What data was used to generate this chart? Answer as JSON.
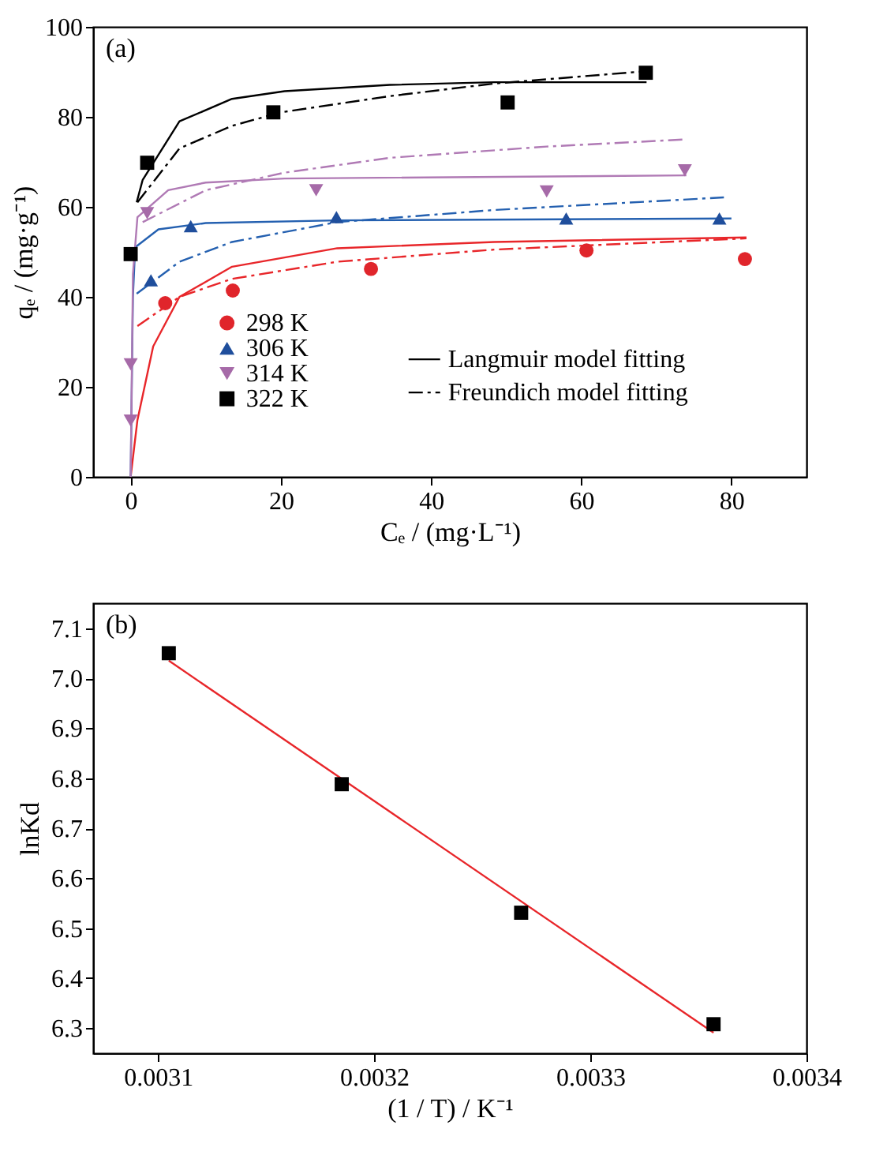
{
  "chart_data": [
    {
      "type": "scatter",
      "annotations": [
        "(a)"
      ],
      "xlabel": "Cₑ / (mg·L⁻¹)",
      "ylabel": "qₑ / (mg·g⁻¹)",
      "xlim": [
        -5,
        90
      ],
      "ylim": [
        0,
        100
      ],
      "xticks": [
        0,
        20,
        40,
        60,
        80
      ],
      "yticks": [
        0,
        20,
        40,
        60,
        80,
        100
      ],
      "grid": false,
      "legend": "bottom",
      "series": [
        {
          "type": "line",
          "color": "#e8262a",
          "line_style": "solid",
          "x": [
            0,
            0.9,
            3,
            6.5,
            13.5,
            27.5,
            48.4,
            82
          ],
          "values": [
            0,
            12.6,
            29,
            40,
            46.7,
            50.8,
            52.2,
            53.2
          ]
        },
        {
          "type": "line",
          "color": "#e8262a",
          "line_style": "dashed",
          "x": [
            0.9,
            6.5,
            13.5,
            27.5,
            48.4,
            82
          ],
          "values": [
            33.5,
            40,
            44,
            47.8,
            50.5,
            53
          ]
        },
        {
          "type": "line",
          "color": "#2460b0",
          "line_style": "solid",
          "x": [
            0,
            0.3,
            0.6,
            3.7,
            10,
            27.5,
            80
          ],
          "values": [
            0,
            40,
            51,
            55,
            56.4,
            57,
            57.4
          ]
        },
        {
          "type": "line",
          "color": "#2460b0",
          "line_style": "dashed",
          "x": [
            0.8,
            6.5,
            13.5,
            27.5,
            48.4,
            79
          ],
          "values": [
            40.7,
            47.8,
            52.2,
            56.6,
            59.3,
            62.1
          ]
        },
        {
          "type": "line",
          "color": "#b07ab5",
          "line_style": "solid",
          "x": [
            0,
            0.3,
            0.9,
            5,
            10,
            20.5,
            74
          ],
          "values": [
            0,
            45,
            57.7,
            63.7,
            65.4,
            66.3,
            67
          ]
        },
        {
          "type": "line",
          "color": "#b07ab5",
          "line_style": "dashed",
          "x": [
            1.6,
            10,
            20.5,
            34.5,
            55.4,
            74
          ],
          "values": [
            56.6,
            63.7,
            67.6,
            70.9,
            73.4,
            75
          ]
        },
        {
          "type": "line",
          "name": "Langmuir model fitting",
          "color": "#000000",
          "line_style": "solid",
          "x": [
            0.8,
            1.6,
            6.5,
            13.5,
            20.5,
            34.5,
            48.4,
            68.7
          ],
          "values": [
            61,
            66,
            79,
            84,
            85.7,
            87.1,
            87.7,
            87.7
          ]
        },
        {
          "type": "line",
          "name": "Freundich model fitting",
          "color": "#000000",
          "line_style": "dashed",
          "x": [
            0.9,
            6.5,
            13.5,
            20,
            34.5,
            48.4,
            68.3
          ],
          "values": [
            61,
            73,
            78,
            81,
            84.6,
            87.4,
            90.1
          ]
        },
        {
          "type": "scatter",
          "name": "298 K",
          "color": "#e0252b",
          "marker": "circle",
          "x": [
            4.6,
            13.6,
            32,
            60.7,
            81.8
          ],
          "values": [
            38.6,
            41.4,
            46.2,
            50.3,
            48.4
          ]
        },
        {
          "type": "scatter",
          "name": "306 K",
          "color": "#1f4e9c",
          "marker": "triangle",
          "x": [
            2.7,
            8,
            27.4,
            58,
            78.4
          ],
          "values": [
            43.7,
            55.7,
            57.7,
            57.4,
            57.4
          ]
        },
        {
          "type": "scatter",
          "name": "314 K",
          "color": "#a66aa8",
          "marker": "triangle-down",
          "x": [
            0,
            0,
            2.2,
            24.7,
            55.4,
            73.8
          ],
          "values": [
            12.5,
            25,
            58.6,
            63.7,
            63.4,
            68.1
          ]
        },
        {
          "type": "scatter",
          "name": "322 K",
          "color": "#000000",
          "marker": "square",
          "x": [
            0,
            2.2,
            19,
            50.2,
            68.6
          ],
          "values": [
            49.5,
            69.8,
            81,
            83.2,
            89.8
          ]
        }
      ]
    },
    {
      "type": "scatter",
      "annotations": [
        "(b)"
      ],
      "xlabel": "(1 / T) / K⁻¹",
      "ylabel": "lnKd",
      "xlim": [
        0.00307,
        0.0034
      ],
      "ylim": [
        6.25,
        7.15
      ],
      "xticks": [
        0.0031,
        0.0032,
        0.0033,
        0.0034
      ],
      "yticks": [
        6.3,
        6.4,
        6.5,
        6.6,
        6.7,
        6.8,
        6.9,
        {
          "value": 7,
          "label": "7.0"
        },
        7.1
      ],
      "grid": false,
      "series": [
        {
          "type": "line",
          "color": "#e8262a",
          "line_style": "solid",
          "x": [
            0.003105,
            0.003357
          ],
          "values": [
            7.035,
            6.291
          ]
        },
        {
          "type": "scatter",
          "color": "#000000",
          "marker": "square",
          "x": [
            0.003105,
            0.003185,
            0.003268,
            0.003357
          ],
          "values": [
            7.05,
            6.788,
            6.531,
            6.308
          ]
        }
      ]
    }
  ]
}
